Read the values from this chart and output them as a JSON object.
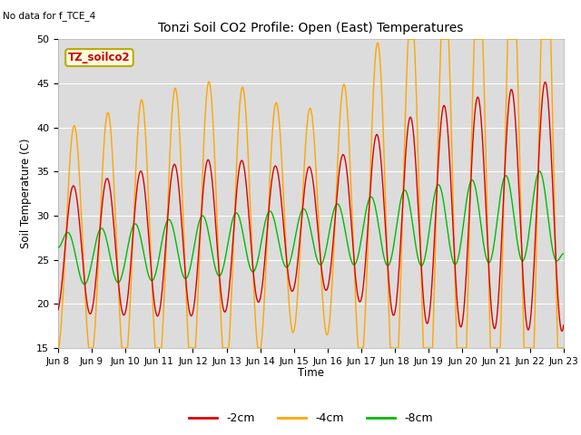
{
  "title": "Tonzi Soil CO2 Profile: Open (East) Temperatures",
  "no_data_label": "No data for f_TCE_4",
  "box_label": "TZ_soilco2",
  "ylabel": "Soil Temperature (C)",
  "xlabel": "Time",
  "ylim": [
    15,
    50
  ],
  "xlim_days": [
    0,
    15
  ],
  "colors": {
    "2cm": "#dd0000",
    "4cm": "#ffa500",
    "8cm": "#00bb00"
  },
  "legend_labels": [
    "-2cm",
    "-4cm",
    "-8cm"
  ],
  "bg_color": "#dcdcdc",
  "fig_bg": "#ffffff",
  "xtick_labels": [
    "Jun 8",
    "Jun 9",
    "Jun 10",
    "Jun 11",
    "Jun 12",
    "Jun 13",
    "Jun 14",
    "Jun 15",
    "Jun 16",
    "Jun 17",
    "Jun 18",
    "Jun 19",
    "Jun 20",
    "Jun 21",
    "Jun 22",
    "Jun 23"
  ],
  "xtick_positions": [
    0,
    1,
    2,
    3,
    4,
    5,
    6,
    7,
    8,
    9,
    10,
    11,
    12,
    13,
    14,
    15
  ],
  "ytick_positions": [
    15,
    20,
    25,
    30,
    35,
    40,
    45,
    50
  ],
  "figsize": [
    6.4,
    4.8
  ],
  "dpi": 100
}
